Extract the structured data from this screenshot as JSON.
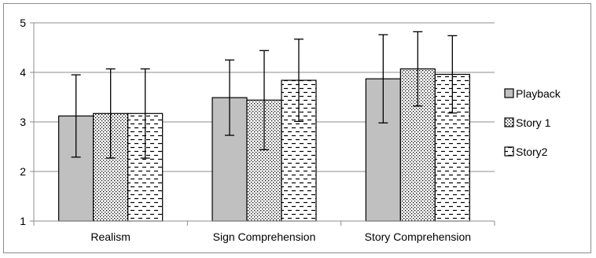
{
  "chart_data": {
    "type": "bar",
    "title": "",
    "xlabel": "",
    "ylabel": "",
    "categories": [
      "Realism",
      "Sign Comprehension",
      "Story Comprehension"
    ],
    "ylim": [
      1,
      5
    ],
    "yticks": [
      1,
      2,
      3,
      4,
      5
    ],
    "grid": true,
    "legend_position": "right",
    "series": [
      {
        "name": "Playback",
        "pattern": "solid-gray",
        "color": "#c0c0c0",
        "values": [
          3.12,
          3.49,
          3.87
        ],
        "errors": [
          0.83,
          0.76,
          0.89
        ]
      },
      {
        "name": "Story 1",
        "pattern": "dotted",
        "color": "#000000",
        "values": [
          3.17,
          3.44,
          4.07
        ],
        "errors": [
          0.9,
          1.0,
          0.75
        ]
      },
      {
        "name": "Story2",
        "pattern": "dashed-lines",
        "color": "#000000",
        "values": [
          3.17,
          3.84,
          3.96
        ],
        "errors": [
          0.9,
          0.83,
          0.78
        ]
      }
    ]
  }
}
